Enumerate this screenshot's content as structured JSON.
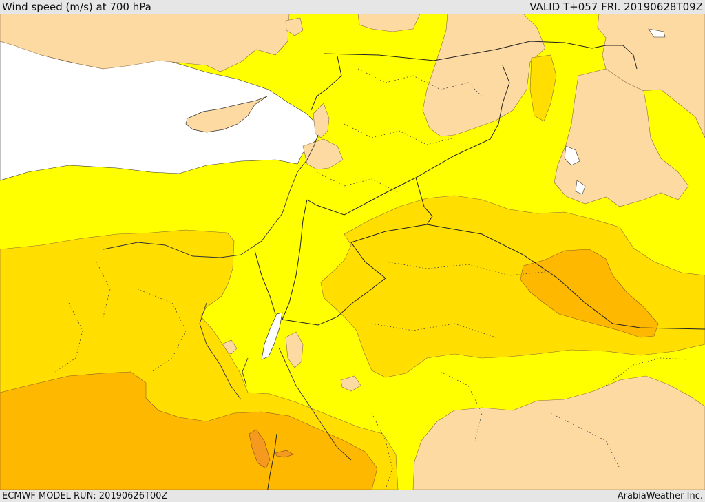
{
  "header": {
    "title": "Wind speed (m/s) at 700 hPa",
    "valid": "VALID T+057 FRI. 20190628T09Z"
  },
  "footer": {
    "model_run": "ECMWF MODEL RUN: 20190626T00Z",
    "credit": "ArabiaWeather Inc."
  },
  "colors": {
    "sea": "#ffffff",
    "band_lowest": "#fedaa3",
    "band_low": "#ffff00",
    "band_mid": "#ffde00",
    "band_high": "#ffb800",
    "band_highest": "#f59a1e",
    "borders": "#222222"
  }
}
